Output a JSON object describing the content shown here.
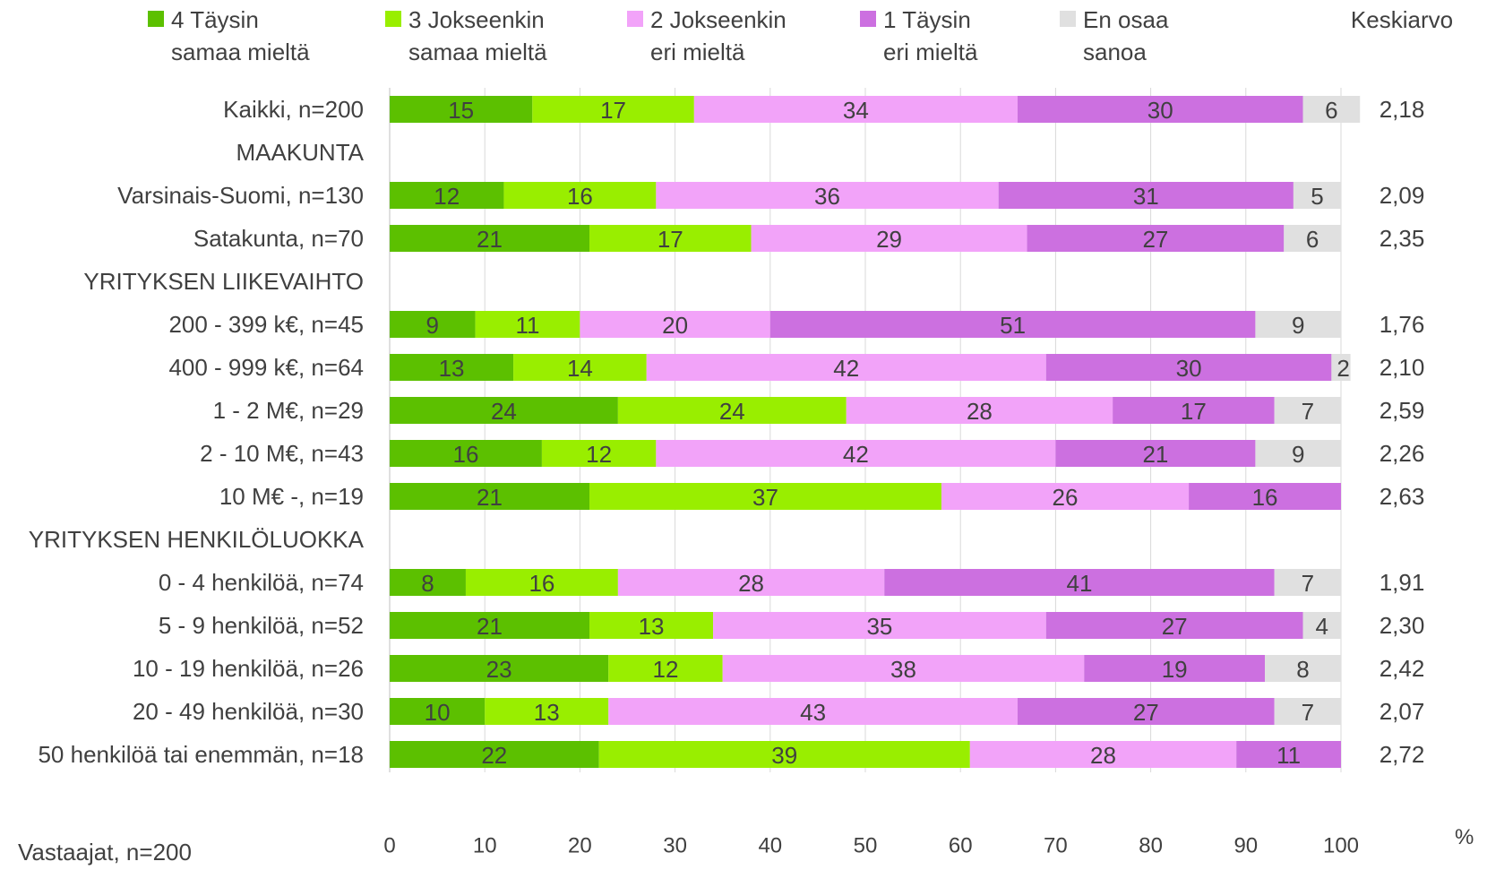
{
  "legend": [
    {
      "line1": "4 Täysin",
      "line2": "samaa mieltä",
      "color": "#5CC000"
    },
    {
      "line1": "3 Jokseenkin",
      "line2": "samaa mieltä",
      "color": "#99EE00"
    },
    {
      "line1": "2 Jokseenkin",
      "line2": "eri mieltä",
      "color": "#F2A3F9"
    },
    {
      "line1": "1 Täysin",
      "line2": "eri mieltä",
      "color": "#CC70E0"
    },
    {
      "line1": "En osaa",
      "line2": "sanoa",
      "color": "#E0E0E0"
    }
  ],
  "mean_header": "Keskiarvo",
  "footer_label": "Vastaajat, n=200",
  "percent_sign": "%",
  "chart_data": {
    "type": "bar",
    "orientation": "horizontal",
    "stacked": true,
    "xlim": [
      0,
      100
    ],
    "x_ticks": [
      "0",
      "10",
      "20",
      "30",
      "40",
      "50",
      "60",
      "70",
      "80",
      "90",
      "100"
    ],
    "grid": true,
    "series": [
      {
        "name": "4 Täysin samaa mieltä",
        "color": "#5CC000"
      },
      {
        "name": "3 Jokseenkin samaa mieltä",
        "color": "#99EE00"
      },
      {
        "name": "2 Jokseenkin eri mieltä",
        "color": "#F2A3F9"
      },
      {
        "name": "1 Täysin eri mieltä",
        "color": "#CC70E0"
      },
      {
        "name": "En osaa sanoa",
        "color": "#E0E0E0"
      }
    ],
    "rows": [
      {
        "label": "Kaikki, n=200",
        "values": [
          15,
          17,
          34,
          30,
          6
        ],
        "mean": "2,18"
      },
      {
        "label": "MAAKUNTA",
        "header": true
      },
      {
        "label": "Varsinais-Suomi, n=130",
        "values": [
          12,
          16,
          36,
          31,
          5
        ],
        "mean": "2,09"
      },
      {
        "label": "Satakunta, n=70",
        "values": [
          21,
          17,
          29,
          27,
          6
        ],
        "mean": "2,35"
      },
      {
        "label": "YRITYKSEN LIIKEVAIHTO",
        "header": true
      },
      {
        "label": "200 - 399 k€, n=45",
        "values": [
          9,
          11,
          20,
          51,
          9
        ],
        "mean": "1,76"
      },
      {
        "label": "400 - 999 k€, n=64",
        "values": [
          13,
          14,
          42,
          30,
          2
        ],
        "mean": "2,10"
      },
      {
        "label": "1 - 2 M€, n=29",
        "values": [
          24,
          24,
          28,
          17,
          7
        ],
        "mean": "2,59"
      },
      {
        "label": "2 - 10 M€, n=43",
        "values": [
          16,
          12,
          42,
          21,
          9
        ],
        "mean": "2,26"
      },
      {
        "label": "10 M€ -, n=19",
        "values": [
          21,
          37,
          26,
          16,
          0
        ],
        "mean": "2,63"
      },
      {
        "label": "YRITYKSEN HENKILÖLUOKKA",
        "header": true
      },
      {
        "label": "0 - 4 henkilöä, n=74",
        "values": [
          8,
          16,
          28,
          41,
          7
        ],
        "mean": "1,91"
      },
      {
        "label": "5 - 9 henkilöä, n=52",
        "values": [
          21,
          13,
          35,
          27,
          4
        ],
        "mean": "2,30"
      },
      {
        "label": "10 - 19 henkilöä, n=26",
        "values": [
          23,
          12,
          38,
          19,
          8
        ],
        "mean": "2,42"
      },
      {
        "label": "20 - 49 henkilöä, n=30",
        "values": [
          10,
          13,
          43,
          27,
          7
        ],
        "mean": "2,07"
      },
      {
        "label": "50 henkilöä tai enemmän, n=18",
        "values": [
          22,
          39,
          28,
          11,
          0
        ],
        "mean": "2,72"
      }
    ]
  }
}
